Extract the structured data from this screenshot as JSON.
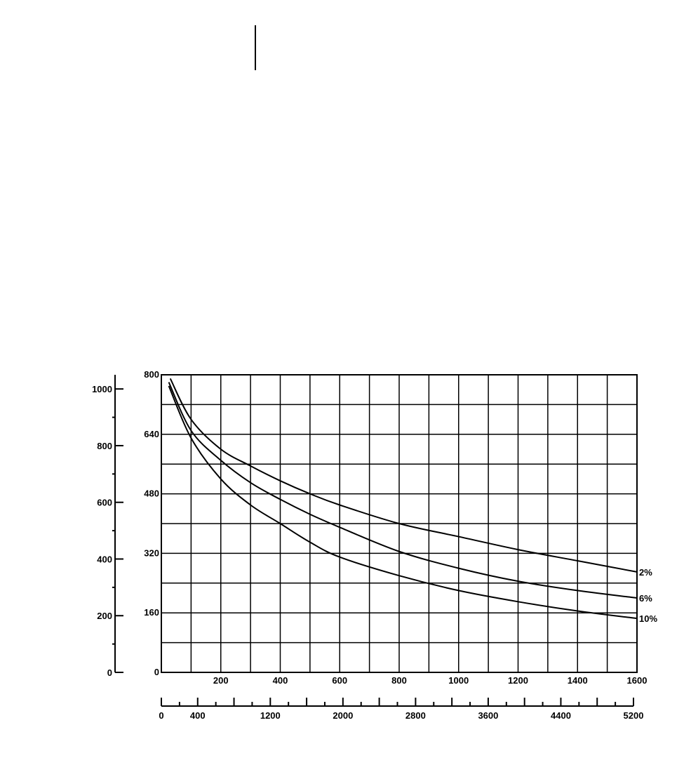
{
  "chart_data": {
    "type": "line",
    "title": "",
    "xlabel": "",
    "ylabel": "",
    "grid": true,
    "xlim": [
      0,
      1600
    ],
    "ylim": [
      0,
      800
    ],
    "x_ticks": [
      "200",
      "400",
      "600",
      "800",
      "1000",
      "1200",
      "1400",
      "1600"
    ],
    "y_ticks": [
      "0",
      "160",
      "320",
      "480",
      "640",
      "800"
    ],
    "secondary_y_axis": {
      "range": [
        0,
        1050
      ],
      "ticks": [
        "0",
        "200",
        "400",
        "600",
        "800",
        "1000"
      ]
    },
    "secondary_x_axis": {
      "range": [
        0,
        5200
      ],
      "ticks": [
        "0",
        "400",
        "1200",
        "2000",
        "2800",
        "3600",
        "4400",
        "5200"
      ]
    },
    "series": [
      {
        "name": "2%",
        "x": [
          30,
          100,
          200,
          300,
          400,
          500,
          600,
          800,
          1000,
          1200,
          1400,
          1600
        ],
        "y": [
          790,
          680,
          600,
          555,
          515,
          480,
          450,
          400,
          365,
          330,
          300,
          270
        ]
      },
      {
        "name": "6%",
        "x": [
          25,
          100,
          200,
          300,
          400,
          500,
          600,
          800,
          1000,
          1200,
          1400,
          1600
        ],
        "y": [
          780,
          650,
          570,
          510,
          465,
          425,
          390,
          325,
          280,
          245,
          220,
          200
        ]
      },
      {
        "name": "10%",
        "x": [
          25,
          100,
          200,
          300,
          400,
          500,
          600,
          800,
          1000,
          1200,
          1400,
          1600
        ],
        "y": [
          770,
          630,
          520,
          450,
          400,
          350,
          310,
          260,
          220,
          190,
          165,
          145
        ]
      }
    ]
  }
}
